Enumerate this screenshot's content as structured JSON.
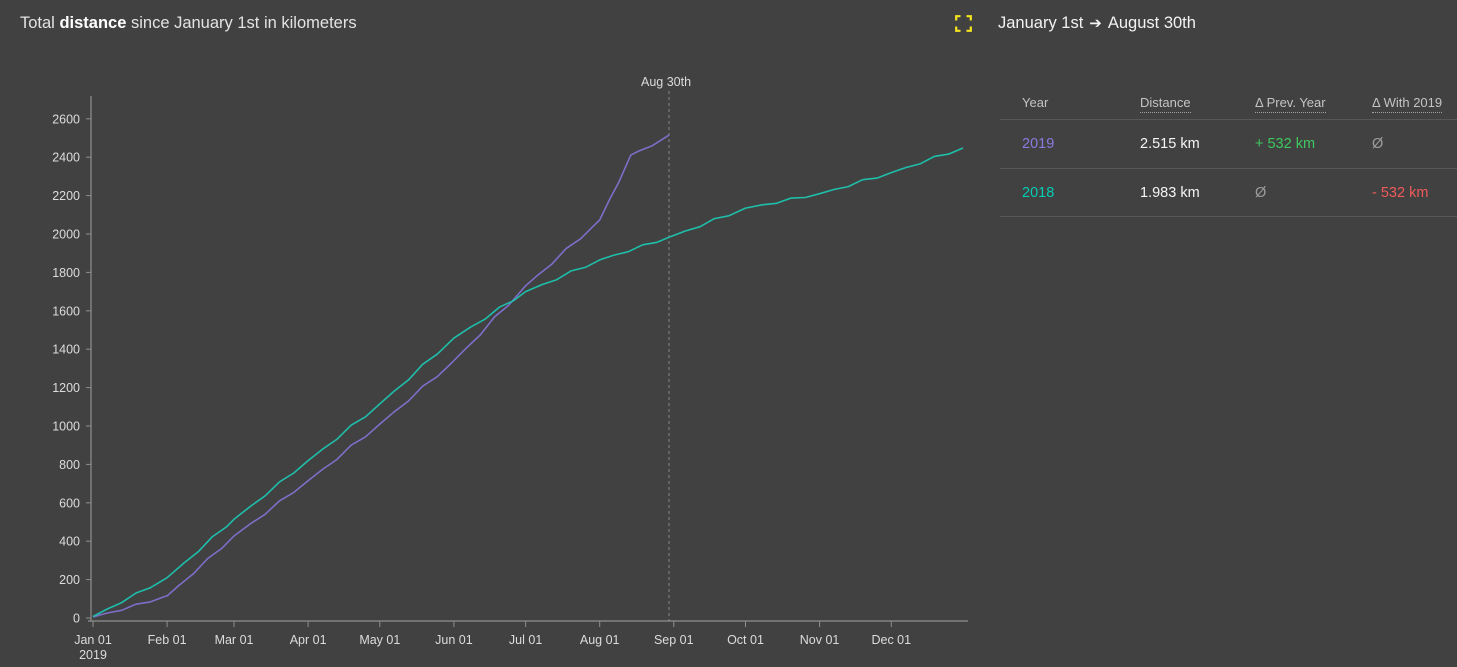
{
  "colors": {
    "bg": "#414141",
    "purple": "#7d6ec8",
    "teal": "#1ebeaa",
    "purple_text": "#8b7ae0",
    "teal_text": "#00cdb4",
    "green": "#3dc85e",
    "red": "#f05a5a",
    "gray": "#9e9e9e",
    "yellow": "#f4e51e"
  },
  "header": {
    "title_prefix": "Total ",
    "title_bold": "distance",
    "title_suffix": " since January 1st in kilometers",
    "fullscreen_icon": "fullscreen-expand-icon"
  },
  "range": {
    "start": "January 1st",
    "arrow": "➔",
    "end": "August 30th"
  },
  "table": {
    "headers": [
      {
        "label": "Year"
      },
      {
        "label": "Distance"
      },
      {
        "label": "Δ Prev. Year"
      },
      {
        "label": "Δ With 2019"
      }
    ],
    "rows": [
      {
        "year": "2019",
        "distance": "2.515 km",
        "delta_prev": "+ 532 km",
        "delta_with_2019": "Ø"
      },
      {
        "year": "2018",
        "distance": "1.983 km",
        "delta_prev": "Ø",
        "delta_with_2019": "- 532 km"
      }
    ]
  },
  "chart_data": {
    "type": "line",
    "title": "Total distance since January 1st in kilometers",
    "xlabel": "",
    "ylabel": "",
    "ylim": [
      0,
      2700
    ],
    "yticks": [
      0,
      200,
      400,
      600,
      800,
      1000,
      1200,
      1400,
      1600,
      1800,
      2000,
      2200,
      2400,
      2600
    ],
    "x_unit": "day-of-year",
    "x_range_days": [
      0,
      364
    ],
    "grid": false,
    "legend_position": "none",
    "months": [
      {
        "label": "Jan 01",
        "day": 0,
        "sub": "2019"
      },
      {
        "label": "Feb 01",
        "day": 31
      },
      {
        "label": "Mar 01",
        "day": 59
      },
      {
        "label": "Apr 01",
        "day": 90
      },
      {
        "label": "May 01",
        "day": 120
      },
      {
        "label": "Jun 01",
        "day": 151
      },
      {
        "label": "Jul 01",
        "day": 181
      },
      {
        "label": "Aug 01",
        "day": 212
      },
      {
        "label": "Sep 01",
        "day": 243
      },
      {
        "label": "Oct 01",
        "day": 273
      },
      {
        "label": "Nov 01",
        "day": 304
      },
      {
        "label": "Dec 01",
        "day": 334
      }
    ],
    "annotation": {
      "day": 241,
      "label": "Aug 30th"
    },
    "series": [
      {
        "name": "2019",
        "color": "#7d6ec8",
        "end_value_km": 2515,
        "points": [
          [
            0,
            5
          ],
          [
            6,
            26
          ],
          [
            12,
            40
          ],
          [
            18,
            72
          ],
          [
            24,
            84
          ],
          [
            30,
            112
          ],
          [
            31,
            115
          ],
          [
            36,
            170
          ],
          [
            42,
            230
          ],
          [
            48,
            310
          ],
          [
            54,
            364
          ],
          [
            59,
            427
          ],
          [
            66,
            492
          ],
          [
            72,
            540
          ],
          [
            78,
            610
          ],
          [
            84,
            654
          ],
          [
            90,
            715
          ],
          [
            96,
            774
          ],
          [
            102,
            825
          ],
          [
            108,
            900
          ],
          [
            114,
            944
          ],
          [
            120,
            1010
          ],
          [
            126,
            1074
          ],
          [
            132,
            1130
          ],
          [
            138,
            1208
          ],
          [
            144,
            1257
          ],
          [
            150,
            1328
          ],
          [
            156,
            1404
          ],
          [
            162,
            1474
          ],
          [
            168,
            1568
          ],
          [
            174,
            1630
          ],
          [
            181,
            1730
          ],
          [
            186,
            1785
          ],
          [
            192,
            1843
          ],
          [
            198,
            1925
          ],
          [
            204,
            1975
          ],
          [
            210,
            2049
          ],
          [
            212,
            2073
          ],
          [
            216,
            2177
          ],
          [
            220,
            2270
          ],
          [
            225,
            2411
          ],
          [
            228,
            2430
          ],
          [
            234,
            2460
          ],
          [
            241,
            2515
          ]
        ]
      },
      {
        "name": "2018",
        "color": "#1ebeaa",
        "end_value_km": 2448,
        "points": [
          [
            0,
            8
          ],
          [
            6,
            47
          ],
          [
            12,
            80
          ],
          [
            18,
            130
          ],
          [
            24,
            158
          ],
          [
            31,
            210
          ],
          [
            38,
            286
          ],
          [
            44,
            345
          ],
          [
            50,
            424
          ],
          [
            56,
            476
          ],
          [
            59,
            514
          ],
          [
            66,
            583
          ],
          [
            72,
            636
          ],
          [
            78,
            709
          ],
          [
            84,
            755
          ],
          [
            90,
            820
          ],
          [
            96,
            879
          ],
          [
            102,
            930
          ],
          [
            108,
            1004
          ],
          [
            114,
            1048
          ],
          [
            120,
            1115
          ],
          [
            126,
            1182
          ],
          [
            132,
            1240
          ],
          [
            138,
            1322
          ],
          [
            144,
            1374
          ],
          [
            151,
            1458
          ],
          [
            158,
            1515
          ],
          [
            164,
            1556
          ],
          [
            170,
            1619
          ],
          [
            176,
            1653
          ],
          [
            181,
            1700
          ],
          [
            188,
            1737
          ],
          [
            194,
            1762
          ],
          [
            200,
            1808
          ],
          [
            206,
            1826
          ],
          [
            212,
            1865
          ],
          [
            218,
            1890
          ],
          [
            224,
            1908
          ],
          [
            230,
            1944
          ],
          [
            236,
            1957
          ],
          [
            241,
            1983
          ],
          [
            248,
            2016
          ],
          [
            254,
            2038
          ],
          [
            260,
            2080
          ],
          [
            266,
            2095
          ],
          [
            273,
            2135
          ],
          [
            280,
            2152
          ],
          [
            286,
            2160
          ],
          [
            292,
            2187
          ],
          [
            298,
            2190
          ],
          [
            304,
            2210
          ],
          [
            310,
            2232
          ],
          [
            316,
            2247
          ],
          [
            322,
            2283
          ],
          [
            328,
            2291
          ],
          [
            334,
            2320
          ],
          [
            340,
            2346
          ],
          [
            346,
            2365
          ],
          [
            352,
            2404
          ],
          [
            358,
            2416
          ],
          [
            364,
            2448
          ]
        ]
      }
    ]
  }
}
